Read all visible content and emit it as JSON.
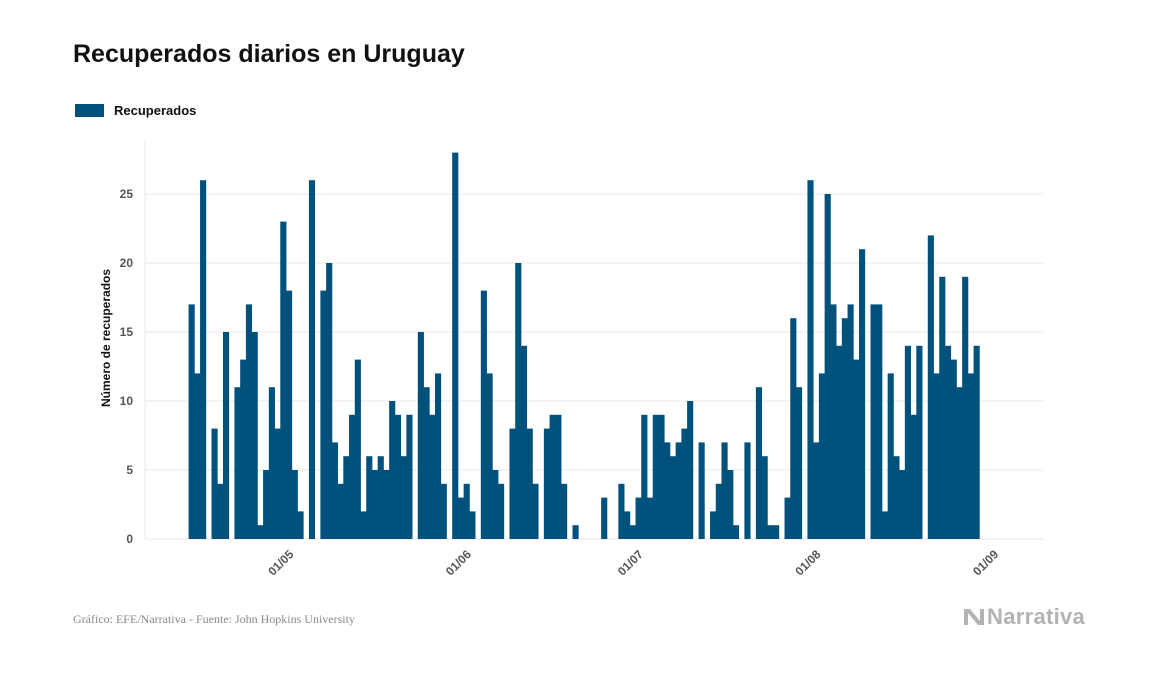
{
  "title": "Recuperados diarios en Uruguay",
  "legend": {
    "label": "Recuperados"
  },
  "footer": {
    "source": "Gráfico: EFE/Narrativa - Fuente: John Hopkins University",
    "brand": "Narrativa"
  },
  "colors": {
    "bar": "#00517c",
    "grid": "#e8e8e8",
    "axis_text": "#555555"
  },
  "chart_data": {
    "type": "bar",
    "title": "Recuperados diarios en Uruguay",
    "xlabel": "",
    "ylabel": "Número de recuperados",
    "ylim": [
      0,
      29
    ],
    "yticks": [
      0,
      5,
      10,
      15,
      20,
      25
    ],
    "xticks": [
      {
        "label": "01/05",
        "index": 16
      },
      {
        "label": "01/06",
        "index": 47
      },
      {
        "label": "01/07",
        "index": 77
      },
      {
        "label": "01/08",
        "index": 108
      },
      {
        "label": "01/09",
        "index": 139
      }
    ],
    "series": [
      {
        "name": "Recuperados",
        "values": [
          17,
          12,
          26,
          0,
          8,
          4,
          15,
          0,
          11,
          13,
          17,
          15,
          1,
          5,
          11,
          8,
          23,
          18,
          5,
          2,
          0,
          26,
          0,
          18,
          20,
          7,
          4,
          6,
          9,
          13,
          2,
          6,
          5,
          6,
          5,
          10,
          9,
          6,
          9,
          0,
          15,
          11,
          9,
          12,
          4,
          0,
          28,
          3,
          4,
          2,
          0,
          18,
          12,
          5,
          4,
          0,
          8,
          20,
          14,
          8,
          4,
          0,
          8,
          9,
          9,
          4,
          0,
          1,
          0,
          0,
          0,
          0,
          3,
          0,
          0,
          4,
          2,
          1,
          3,
          9,
          3,
          9,
          9,
          7,
          6,
          7,
          8,
          10,
          0,
          7,
          0,
          2,
          4,
          7,
          5,
          1,
          0,
          7,
          0,
          11,
          6,
          1,
          1,
          0,
          3,
          16,
          11,
          0,
          26,
          7,
          12,
          25,
          17,
          14,
          16,
          17,
          13,
          21,
          0,
          17,
          17,
          2,
          12,
          6,
          5,
          14,
          9,
          14,
          0,
          22,
          12,
          19,
          14,
          13,
          11,
          19,
          12,
          14
        ]
      }
    ]
  }
}
